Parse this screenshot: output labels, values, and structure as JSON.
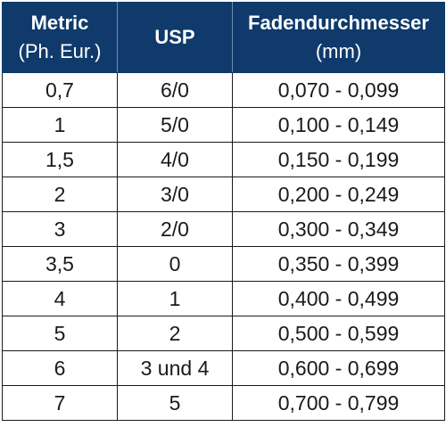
{
  "table": {
    "header": {
      "col1_main": "Metric",
      "col1_sub": "(Ph. Eur.)",
      "col2_main": "USP",
      "col3_main": "Fadendurchmesser",
      "col3_sub": "(mm)"
    },
    "rows": [
      [
        "0,7",
        "6/0",
        "0,070 - 0,099"
      ],
      [
        "1",
        "5/0",
        "0,100 - 0,149"
      ],
      [
        "1,5",
        "4/0",
        "0,150  - 0,199"
      ],
      [
        "2",
        "3/0",
        "0,200 -  0,249"
      ],
      [
        "3",
        "2/0",
        "0,300 - 0,349"
      ],
      [
        "3,5",
        "0",
        "0,350 - 0,399"
      ],
      [
        "4",
        "1",
        "0,400 - 0,499"
      ],
      [
        "5",
        "2",
        "0,500  - 0,599"
      ],
      [
        "6",
        "3 und 4",
        "0,600 - 0,699"
      ],
      [
        "7",
        "5",
        "0,700 - 0,799"
      ]
    ],
    "colors": {
      "header_bg": "#0f3a6b",
      "header_text": "#ffffff",
      "border": "#1a1a1a"
    }
  }
}
